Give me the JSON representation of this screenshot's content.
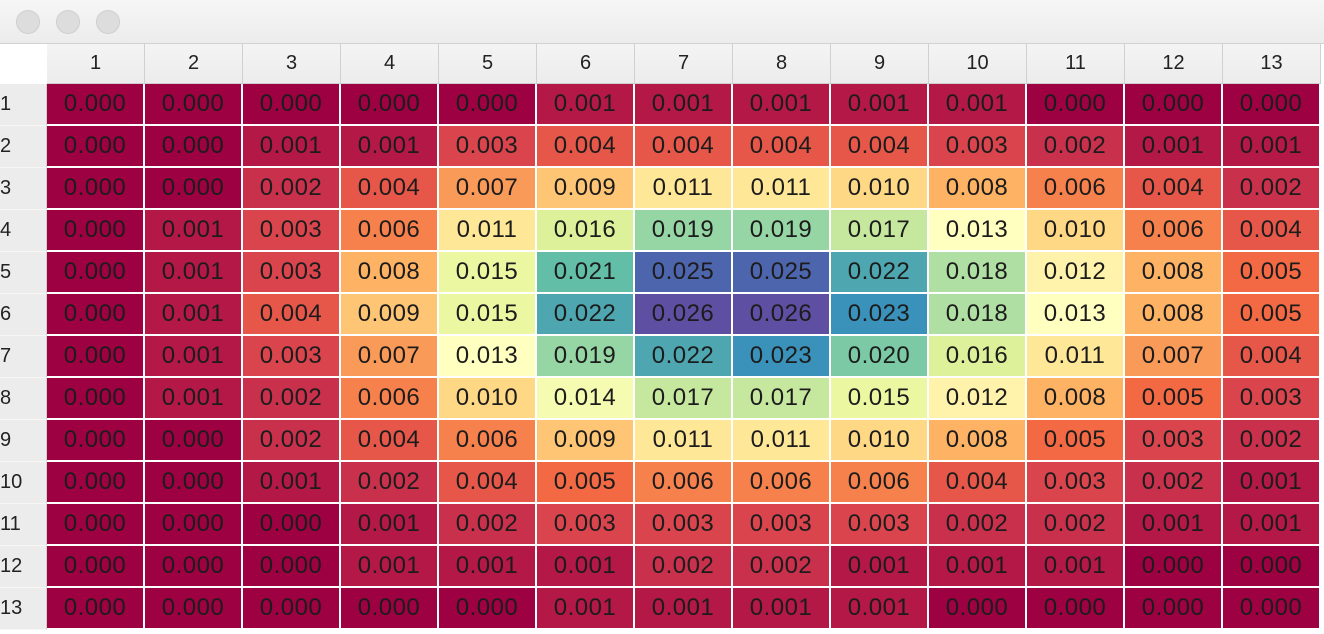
{
  "window": {
    "controls": [
      "close",
      "minimize",
      "zoom"
    ]
  },
  "table": {
    "column_headers": [
      "1",
      "2",
      "3",
      "4",
      "5",
      "6",
      "7",
      "8",
      "9",
      "10",
      "11",
      "12",
      "13"
    ],
    "row_headers": [
      "1",
      "2",
      "3",
      "4",
      "5",
      "6",
      "7",
      "8",
      "9",
      "10",
      "11",
      "12",
      "13"
    ],
    "values": [
      [
        "0.000",
        "0.000",
        "0.000",
        "0.000",
        "0.000",
        "0.001",
        "0.001",
        "0.001",
        "0.001",
        "0.001",
        "0.000",
        "0.000",
        "0.000"
      ],
      [
        "0.000",
        "0.000",
        "0.001",
        "0.001",
        "0.003",
        "0.004",
        "0.004",
        "0.004",
        "0.004",
        "0.003",
        "0.002",
        "0.001",
        "0.001"
      ],
      [
        "0.000",
        "0.000",
        "0.002",
        "0.004",
        "0.007",
        "0.009",
        "0.011",
        "0.011",
        "0.010",
        "0.008",
        "0.006",
        "0.004",
        "0.002"
      ],
      [
        "0.000",
        "0.001",
        "0.003",
        "0.006",
        "0.011",
        "0.016",
        "0.019",
        "0.019",
        "0.017",
        "0.013",
        "0.010",
        "0.006",
        "0.004"
      ],
      [
        "0.000",
        "0.001",
        "0.003",
        "0.008",
        "0.015",
        "0.021",
        "0.025",
        "0.025",
        "0.022",
        "0.018",
        "0.012",
        "0.008",
        "0.005"
      ],
      [
        "0.000",
        "0.001",
        "0.004",
        "0.009",
        "0.015",
        "0.022",
        "0.026",
        "0.026",
        "0.023",
        "0.018",
        "0.013",
        "0.008",
        "0.005"
      ],
      [
        "0.000",
        "0.001",
        "0.003",
        "0.007",
        "0.013",
        "0.019",
        "0.022",
        "0.023",
        "0.020",
        "0.016",
        "0.011",
        "0.007",
        "0.004"
      ],
      [
        "0.000",
        "0.001",
        "0.002",
        "0.006",
        "0.010",
        "0.014",
        "0.017",
        "0.017",
        "0.015",
        "0.012",
        "0.008",
        "0.005",
        "0.003"
      ],
      [
        "0.000",
        "0.000",
        "0.002",
        "0.004",
        "0.006",
        "0.009",
        "0.011",
        "0.011",
        "0.010",
        "0.008",
        "0.005",
        "0.003",
        "0.002"
      ],
      [
        "0.000",
        "0.000",
        "0.001",
        "0.002",
        "0.004",
        "0.005",
        "0.006",
        "0.006",
        "0.006",
        "0.004",
        "0.003",
        "0.002",
        "0.001"
      ],
      [
        "0.000",
        "0.000",
        "0.000",
        "0.001",
        "0.002",
        "0.003",
        "0.003",
        "0.003",
        "0.003",
        "0.002",
        "0.002",
        "0.001",
        "0.001"
      ],
      [
        "0.000",
        "0.000",
        "0.000",
        "0.001",
        "0.001",
        "0.001",
        "0.002",
        "0.002",
        "0.001",
        "0.001",
        "0.001",
        "0.000",
        "0.000"
      ],
      [
        "0.000",
        "0.000",
        "0.000",
        "0.000",
        "0.000",
        "0.001",
        "0.001",
        "0.001",
        "0.001",
        "0.000",
        "0.000",
        "0.000",
        "0.000"
      ]
    ],
    "colormap": {
      "name": "Spectral",
      "vmin": 0.0,
      "vmax": 0.026,
      "stops": [
        "#9e0142",
        "#d53e4f",
        "#f46d43",
        "#fdae61",
        "#fee08b",
        "#ffffbf",
        "#e6f598",
        "#abdda4",
        "#66c2a5",
        "#3288bd",
        "#5e4fa2"
      ]
    }
  }
}
